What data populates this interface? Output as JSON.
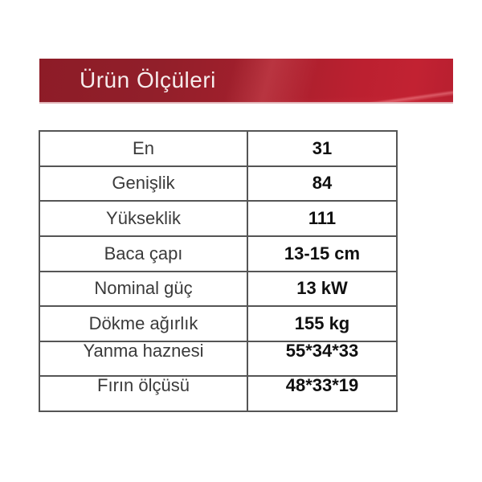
{
  "page": {
    "background": "#ffffff"
  },
  "banner": {
    "title": "Ürün Ölçüleri",
    "color_left": "#8d1c27",
    "color_right": "#c22232",
    "underline_color": "#e2b6ba",
    "text_color": "#f6ecec"
  },
  "table": {
    "border_color": "#555555",
    "rows": [
      {
        "label": "En",
        "value": "31"
      },
      {
        "label": "Genişlik",
        "value": "84"
      },
      {
        "label": "Yükseklik",
        "value": "111"
      },
      {
        "label": "Baca çapı",
        "value": "13-15 cm"
      },
      {
        "label": "Nominal güç",
        "value": "13 kW"
      },
      {
        "label": "Dökme ağırlık",
        "value": "155 kg"
      },
      {
        "label": "Yanma haznesi",
        "value": "55*34*33"
      },
      {
        "label": "Fırın ölçüsü",
        "value": "48*33*19"
      }
    ]
  }
}
